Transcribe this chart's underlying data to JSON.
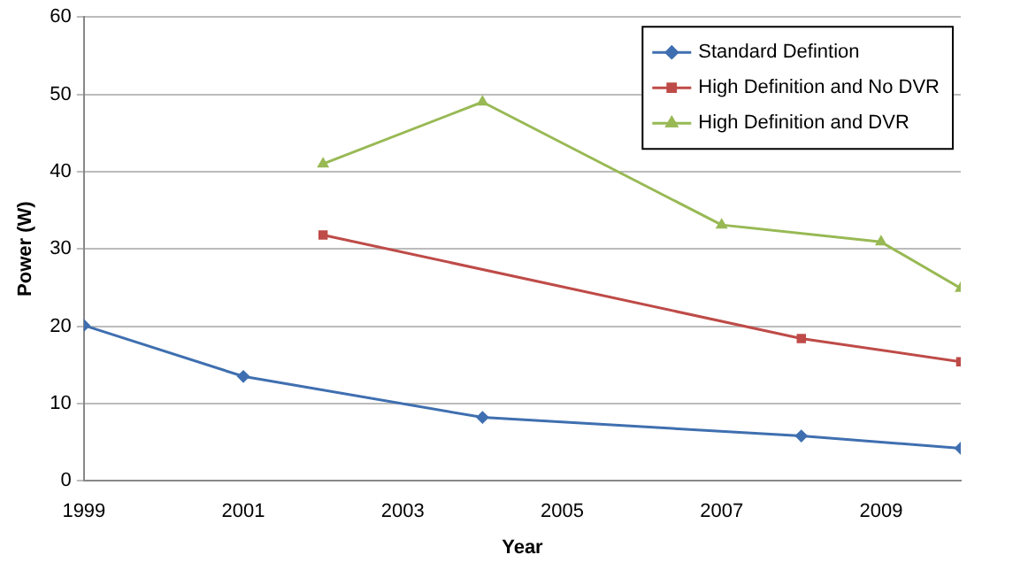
{
  "chart_data": {
    "type": "line",
    "xlabel": "Year",
    "ylabel": "Power (W)",
    "xlim": [
      1999,
      2010
    ],
    "xticks": [
      1999,
      2001,
      2003,
      2005,
      2007,
      2009
    ],
    "ylim": [
      0,
      60
    ],
    "yticks": [
      0,
      10,
      20,
      30,
      40,
      50,
      60
    ],
    "grid": "y",
    "legend": "top right",
    "series": [
      {
        "name": "Standard Defintion",
        "color": "#3f6fb0",
        "marker": "diamond",
        "x": [
          1999,
          2001,
          2004,
          2008,
          2010
        ],
        "values": [
          20.1,
          13.5,
          8.2,
          5.8,
          4.2
        ]
      },
      {
        "name": "High Definition and No DVR",
        "color": "#be4b48",
        "marker": "square",
        "x": [
          2002,
          2008,
          2010
        ],
        "values": [
          31.8,
          18.4,
          15.4
        ]
      },
      {
        "name": "High Definition and DVR",
        "color": "#98b954",
        "marker": "triangle",
        "x": [
          2002,
          2004,
          2007,
          2009,
          2010
        ],
        "values": [
          41,
          49,
          33.1,
          30.9,
          24.9
        ]
      }
    ]
  }
}
